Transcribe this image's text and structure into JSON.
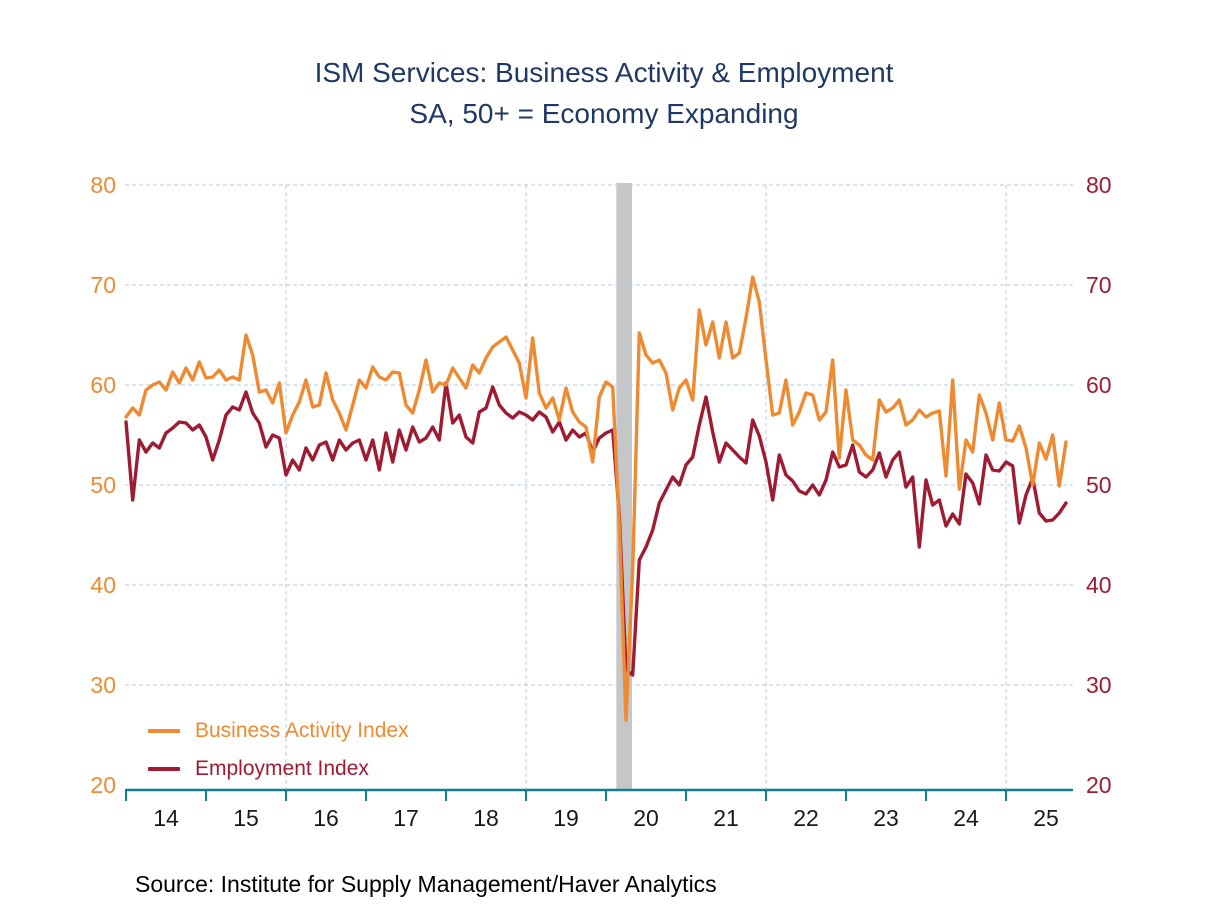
{
  "title": {
    "line1": "ISM Services: Business Activity & Employment",
    "line2": "SA, 50+ = Economy Expanding",
    "color": "#1F3864"
  },
  "source_note": "Source:  Institute for Supply Management/Haver Analytics",
  "legend": [
    {
      "label": "Business Activity Index",
      "color": "#EE8A31"
    },
    {
      "label": "Employment Index",
      "color": "#9E1B32"
    }
  ],
  "chart_data": {
    "type": "line",
    "frequency": "monthly",
    "x_start": "2014-01",
    "x_end": "2025-10",
    "x_tick_labels": [
      "14",
      "15",
      "16",
      "17",
      "18",
      "19",
      "20",
      "21",
      "22",
      "23",
      "24",
      "25"
    ],
    "x_gridline_years": [
      2016,
      2019,
      2022,
      2025
    ],
    "y_ticks": [
      80,
      70,
      60,
      50,
      40,
      30,
      20
    ],
    "y_range": [
      20,
      80
    ],
    "grid": true,
    "legend_position": "bottom-left-inside",
    "left_axis_color": "#EE8A31",
    "right_axis_color": "#9E1B32",
    "x_label_color": "#1a1a1a",
    "axis_line_color": "#11808E",
    "gridline_color": "#B7C9E5",
    "recession_band": {
      "start": "2020-02",
      "end": "2020-04",
      "color": "#C5C6C8"
    },
    "series": [
      {
        "name": "Business Activity Index",
        "color": "#EE8A31",
        "values": [
          56.8,
          57.7,
          57.0,
          59.5,
          60.0,
          60.3,
          59.5,
          61.3,
          60.2,
          61.7,
          60.5,
          62.3,
          60.7,
          60.8,
          61.5,
          60.5,
          60.8,
          60.5,
          65.0,
          63.0,
          59.3,
          59.5,
          58.2,
          60.2,
          55.2,
          57.0,
          58.3,
          60.5,
          57.8,
          58.0,
          61.2,
          58.5,
          57.2,
          55.5,
          58.0,
          60.5,
          59.7,
          61.8,
          60.8,
          60.5,
          61.3,
          61.2,
          58.0,
          57.2,
          59.5,
          62.5,
          59.3,
          60.2,
          60.0,
          61.7,
          60.7,
          59.7,
          62.0,
          61.2,
          62.7,
          63.8,
          64.3,
          64.8,
          63.5,
          62.2,
          58.7,
          64.7,
          59.2,
          57.7,
          58.7,
          56.5,
          59.7,
          57.3,
          56.3,
          55.8,
          52.3,
          58.8,
          60.3,
          59.8,
          46.0,
          26.5,
          41.5,
          65.2,
          63.0,
          62.2,
          62.5,
          61.2,
          57.5,
          59.7,
          60.5,
          58.5,
          67.5,
          64.0,
          66.3,
          62.7,
          66.3,
          62.7,
          63.2,
          66.7,
          70.8,
          68.3,
          62.5,
          57.0,
          57.2,
          60.5,
          56.0,
          57.3,
          59.2,
          59.0,
          56.5,
          57.3,
          62.5,
          52.7,
          59.5,
          54.5,
          54.0,
          53.0,
          52.5,
          58.5,
          57.3,
          57.7,
          58.5,
          56.0,
          56.5,
          57.5,
          56.8,
          57.2,
          57.4,
          50.9,
          60.5,
          49.6,
          54.5,
          53.3,
          59.0,
          57.2,
          54.5,
          58.2,
          54.5,
          54.4,
          55.9,
          53.7,
          50.0,
          54.2,
          52.6,
          55.0,
          49.9,
          54.3
        ]
      },
      {
        "name": "Employment Index",
        "color": "#9E1B32",
        "values": [
          56.3,
          48.5,
          54.5,
          53.3,
          54.2,
          53.7,
          55.2,
          55.7,
          56.3,
          56.2,
          55.5,
          56.0,
          54.8,
          52.5,
          54.5,
          57.0,
          57.8,
          57.5,
          59.3,
          57.2,
          56.2,
          53.8,
          55.0,
          54.7,
          51.0,
          52.5,
          51.5,
          53.7,
          52.5,
          54.0,
          54.3,
          52.5,
          54.5,
          53.5,
          54.2,
          54.5,
          52.5,
          54.5,
          51.5,
          55.2,
          52.3,
          55.5,
          53.5,
          55.8,
          54.3,
          54.7,
          55.8,
          54.5,
          60.2,
          56.2,
          57.0,
          54.8,
          54.2,
          57.3,
          57.7,
          59.8,
          58.0,
          57.2,
          56.7,
          57.3,
          57.0,
          56.5,
          57.3,
          56.8,
          55.3,
          56.3,
          54.5,
          55.5,
          54.8,
          55.2,
          53.3,
          54.7,
          55.2,
          55.5,
          47.0,
          31.5,
          31.0,
          42.5,
          43.8,
          45.5,
          48.2,
          49.5,
          50.8,
          50.0,
          52.0,
          52.8,
          56.0,
          58.8,
          55.3,
          52.3,
          54.2,
          53.5,
          52.8,
          52.2,
          56.5,
          54.9,
          52.3,
          48.5,
          53.0,
          51.0,
          50.4,
          49.4,
          49.1,
          50.0,
          49.0,
          50.5,
          53.3,
          51.8,
          52.0,
          54.0,
          51.3,
          50.8,
          51.5,
          53.2,
          50.8,
          52.5,
          53.3,
          49.8,
          50.8,
          43.8,
          50.5,
          48.0,
          48.5,
          45.9,
          47.1,
          46.1,
          51.1,
          50.2,
          48.1,
          53.0,
          51.5,
          51.4,
          52.3,
          51.9,
          46.2,
          49.0,
          50.7,
          47.2,
          46.4,
          46.5,
          47.2,
          48.2
        ]
      }
    ]
  }
}
